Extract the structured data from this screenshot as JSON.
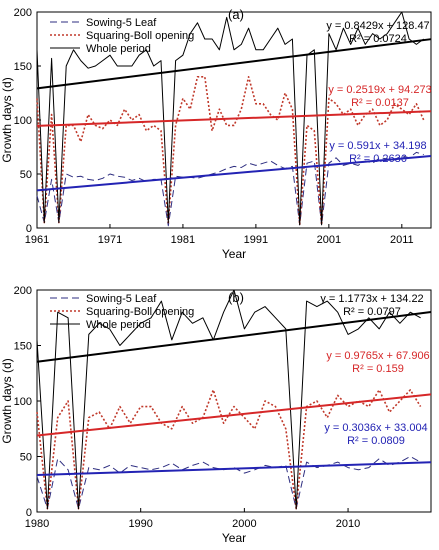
{
  "chart_data": [
    {
      "type": "line",
      "panel_label": "(a)",
      "xlabel": "Year",
      "ylabel": "Growth days (d)",
      "xlim": [
        1961,
        2015
      ],
      "ylim": [
        0,
        200
      ],
      "xticks": [
        1961,
        1971,
        1981,
        1991,
        2001,
        2011
      ],
      "yticks": [
        0,
        50,
        100,
        150,
        200
      ],
      "grid": false,
      "legend": "top-left",
      "series": [
        {
          "name": "Sowing-5 Leaf",
          "style": "dashed",
          "color": "#2e2e80",
          "x": [
            1961,
            1962,
            1963,
            1964,
            1965,
            1966,
            1967,
            1968,
            1969,
            1970,
            1971,
            1972,
            1973,
            1974,
            1975,
            1976,
            1977,
            1978,
            1979,
            1980,
            1981,
            1982,
            1983,
            1984,
            1985,
            1986,
            1987,
            1988,
            1989,
            1990,
            1991,
            1992,
            1993,
            1994,
            1995,
            1996,
            1997,
            1998,
            1999,
            2000,
            2001,
            2002,
            2003,
            2004,
            2005,
            2006,
            2007,
            2008,
            2009,
            2010,
            2011,
            2012,
            2013,
            2014
          ],
          "y": [
            30,
            5,
            45,
            5,
            50,
            47,
            48,
            45,
            44,
            46,
            50,
            48,
            47,
            44,
            46,
            43,
            45,
            45,
            2,
            48,
            47,
            47,
            46,
            48,
            50,
            52,
            55,
            57,
            56,
            60,
            58,
            60,
            62,
            58,
            55,
            57,
            3,
            60,
            62,
            3,
            60,
            65,
            58,
            60,
            58,
            62,
            60,
            65,
            64,
            63,
            67,
            65,
            70,
            68
          ]
        },
        {
          "name": "Squaring-Boll opening",
          "style": "dotted",
          "color": "#c0392b",
          "x": [
            1961,
            1962,
            1963,
            1964,
            1965,
            1966,
            1967,
            1968,
            1969,
            1970,
            1971,
            1972,
            1973,
            1974,
            1975,
            1976,
            1977,
            1978,
            1979,
            1980,
            1981,
            1982,
            1983,
            1984,
            1985,
            1986,
            1987,
            1988,
            1989,
            1990,
            1991,
            1992,
            1993,
            1994,
            1995,
            1996,
            1997,
            1998,
            1999,
            2000,
            2001,
            2002,
            2003,
            2004,
            2005,
            2006,
            2007,
            2008,
            2009,
            2010,
            2011,
            2012,
            2013,
            2014
          ],
          "y": [
            120,
            5,
            105,
            5,
            95,
            95,
            80,
            105,
            95,
            92,
            100,
            95,
            110,
            100,
            105,
            90,
            95,
            90,
            5,
            95,
            120,
            110,
            140,
            140,
            90,
            110,
            95,
            95,
            110,
            140,
            115,
            115,
            105,
            100,
            125,
            110,
            3,
            95,
            90,
            3,
            120,
            115,
            105,
            110,
            95,
            105,
            110,
            95,
            100,
            115,
            110,
            105,
            115,
            100
          ]
        },
        {
          "name": "Whole period",
          "style": "solid",
          "color": "#000000",
          "x": [
            1961,
            1962,
            1963,
            1964,
            1965,
            1966,
            1967,
            1968,
            1969,
            1970,
            1971,
            1972,
            1973,
            1974,
            1975,
            1976,
            1977,
            1978,
            1979,
            1980,
            1981,
            1982,
            1983,
            1984,
            1985,
            1986,
            1987,
            1988,
            1989,
            1990,
            1991,
            1992,
            1993,
            1994,
            1995,
            1996,
            1997,
            1998,
            1999,
            2000,
            2001,
            2002,
            2003,
            2004,
            2005,
            2006,
            2007,
            2008,
            2009,
            2010,
            2011,
            2012,
            2013,
            2014
          ],
          "y": [
            165,
            5,
            157,
            5,
            150,
            165,
            155,
            148,
            150,
            155,
            160,
            150,
            150,
            150,
            160,
            165,
            150,
            155,
            5,
            155,
            160,
            180,
            190,
            175,
            175,
            165,
            195,
            165,
            170,
            185,
            165,
            165,
            175,
            185,
            170,
            175,
            3,
            160,
            165,
            3,
            180,
            165,
            185,
            170,
            185,
            170,
            180,
            175,
            180,
            190,
            200,
            175,
            170,
            175
          ]
        }
      ],
      "trendlines": [
        {
          "series": "Whole period",
          "color": "#000000",
          "equation": "y = 0.8429x + 128.47",
          "r2": "R² = 0.0724",
          "slope": 0.8429,
          "intercept": 128.47
        },
        {
          "series": "Squaring-Boll opening",
          "color": "#d62728",
          "equation": "y = 0.2519x + 94.273",
          "r2": "R² = 0.0137",
          "slope": 0.2519,
          "intercept": 94.273
        },
        {
          "series": "Sowing-5 Leaf",
          "color": "#2323b4",
          "equation": "y = 0.591x + 34.198",
          "r2": "R² = 0.2636",
          "slope": 0.591,
          "intercept": 34.198
        }
      ]
    },
    {
      "type": "line",
      "panel_label": "(b)",
      "xlabel": "Year",
      "ylabel": "Growth days (d)",
      "xlim": [
        1980,
        2018
      ],
      "ylim": [
        0,
        200
      ],
      "xticks": [
        1980,
        1990,
        2000,
        2010
      ],
      "yticks": [
        0,
        50,
        100,
        150,
        200
      ],
      "grid": false,
      "legend": "top-left",
      "series": [
        {
          "name": "Sowing-5 Leaf",
          "style": "dashed",
          "color": "#2e2e80",
          "x": [
            1980,
            1981,
            1982,
            1983,
            1984,
            1985,
            1986,
            1987,
            1988,
            1989,
            1990,
            1991,
            1992,
            1993,
            1994,
            1995,
            1996,
            1997,
            1998,
            1999,
            2000,
            2001,
            2002,
            2003,
            2004,
            2005,
            2006,
            2007,
            2008,
            2009,
            2010,
            2011,
            2012,
            2013,
            2014,
            2015,
            2016,
            2017
          ],
          "y": [
            32,
            3,
            48,
            38,
            3,
            40,
            38,
            42,
            35,
            42,
            40,
            38,
            40,
            44,
            38,
            42,
            45,
            40,
            38,
            40,
            35,
            38,
            42,
            40,
            42,
            3,
            45,
            40,
            42,
            45,
            40,
            38,
            40,
            48,
            42,
            45,
            50,
            45
          ]
        },
        {
          "name": "Squaring-Boll opening",
          "style": "dotted",
          "color": "#c0392b",
          "x": [
            1980,
            1981,
            1982,
            1983,
            1984,
            1985,
            1986,
            1987,
            1988,
            1989,
            1990,
            1991,
            1992,
            1993,
            1994,
            1995,
            1996,
            1997,
            1998,
            1999,
            2000,
            2001,
            2002,
            2003,
            2004,
            2005,
            2006,
            2007,
            2008,
            2009,
            2010,
            2011,
            2012,
            2013,
            2014,
            2015,
            2016,
            2017
          ],
          "y": [
            90,
            3,
            85,
            100,
            3,
            85,
            90,
            75,
            95,
            80,
            95,
            95,
            80,
            75,
            95,
            80,
            85,
            110,
            80,
            95,
            85,
            75,
            100,
            95,
            75,
            3,
            95,
            100,
            85,
            105,
            95,
            100,
            95,
            110,
            90,
            100,
            110,
            95
          ]
        },
        {
          "name": "Whole period",
          "style": "solid",
          "color": "#000000",
          "x": [
            1980,
            1981,
            1982,
            1983,
            1984,
            1985,
            1986,
            1987,
            1988,
            1989,
            1990,
            1991,
            1992,
            1993,
            1994,
            1995,
            1996,
            1997,
            1998,
            1999,
            2000,
            2001,
            2002,
            2003,
            2004,
            2005,
            2006,
            2007,
            2008,
            2009,
            2010,
            2011,
            2012,
            2013,
            2014,
            2015,
            2016,
            2017
          ],
          "y": [
            155,
            3,
            180,
            175,
            3,
            160,
            170,
            165,
            150,
            160,
            170,
            175,
            190,
            155,
            180,
            170,
            175,
            155,
            180,
            200,
            165,
            180,
            185,
            175,
            165,
            3,
            190,
            185,
            190,
            180,
            160,
            165,
            175,
            165,
            180,
            170,
            180,
            175
          ]
        }
      ],
      "trendlines": [
        {
          "series": "Whole period",
          "color": "#000000",
          "equation": "y = 1.1773x + 134.22",
          "r2": "R² = 0.0797",
          "slope": 1.1773,
          "intercept": 134.22
        },
        {
          "series": "Squaring-Boll opening",
          "color": "#d62728",
          "equation": "y = 0.9765x + 67.906",
          "r2": "R² = 0.159",
          "slope": 0.9765,
          "intercept": 67.906
        },
        {
          "series": "Sowing-5 Leaf",
          "color": "#2323b4",
          "equation": "y = 0.3036x + 33.004",
          "r2": "R² = 0.0809",
          "slope": 0.3036,
          "intercept": 33.004
        }
      ]
    }
  ]
}
